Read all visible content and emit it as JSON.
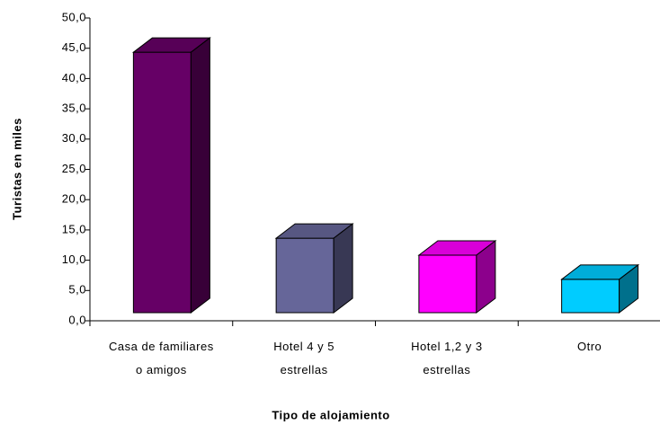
{
  "chart_data": {
    "type": "bar3d",
    "x_label": "Tipo de alojamiento",
    "y_label": "Turistas en miles",
    "categories": [
      "Casa de familiares\no amigos",
      "Hotel 4 y 5\nestrellas",
      "Hotel 1,2 y 3\nestrellas",
      "Otro"
    ],
    "values": [
      43,
      12.3,
      9.5,
      5.5
    ],
    "colors": [
      "#660066",
      "#666699",
      "#ff00ff",
      "#00ccff"
    ],
    "ylim": [
      0,
      50
    ],
    "yticks": [
      {
        "value": 0,
        "label": "0,0"
      },
      {
        "value": 5,
        "label": "5,0"
      },
      {
        "value": 10,
        "label": "10,0"
      },
      {
        "value": 15,
        "label": "15,0"
      },
      {
        "value": 20,
        "label": "20,0"
      },
      {
        "value": 25,
        "label": "25,0"
      },
      {
        "value": 30,
        "label": "30,0"
      },
      {
        "value": 35,
        "label": "35,0"
      },
      {
        "value": 40,
        "label": "40,0"
      },
      {
        "value": 45,
        "label": "45,0"
      },
      {
        "value": 50,
        "label": "50,0"
      }
    ]
  }
}
